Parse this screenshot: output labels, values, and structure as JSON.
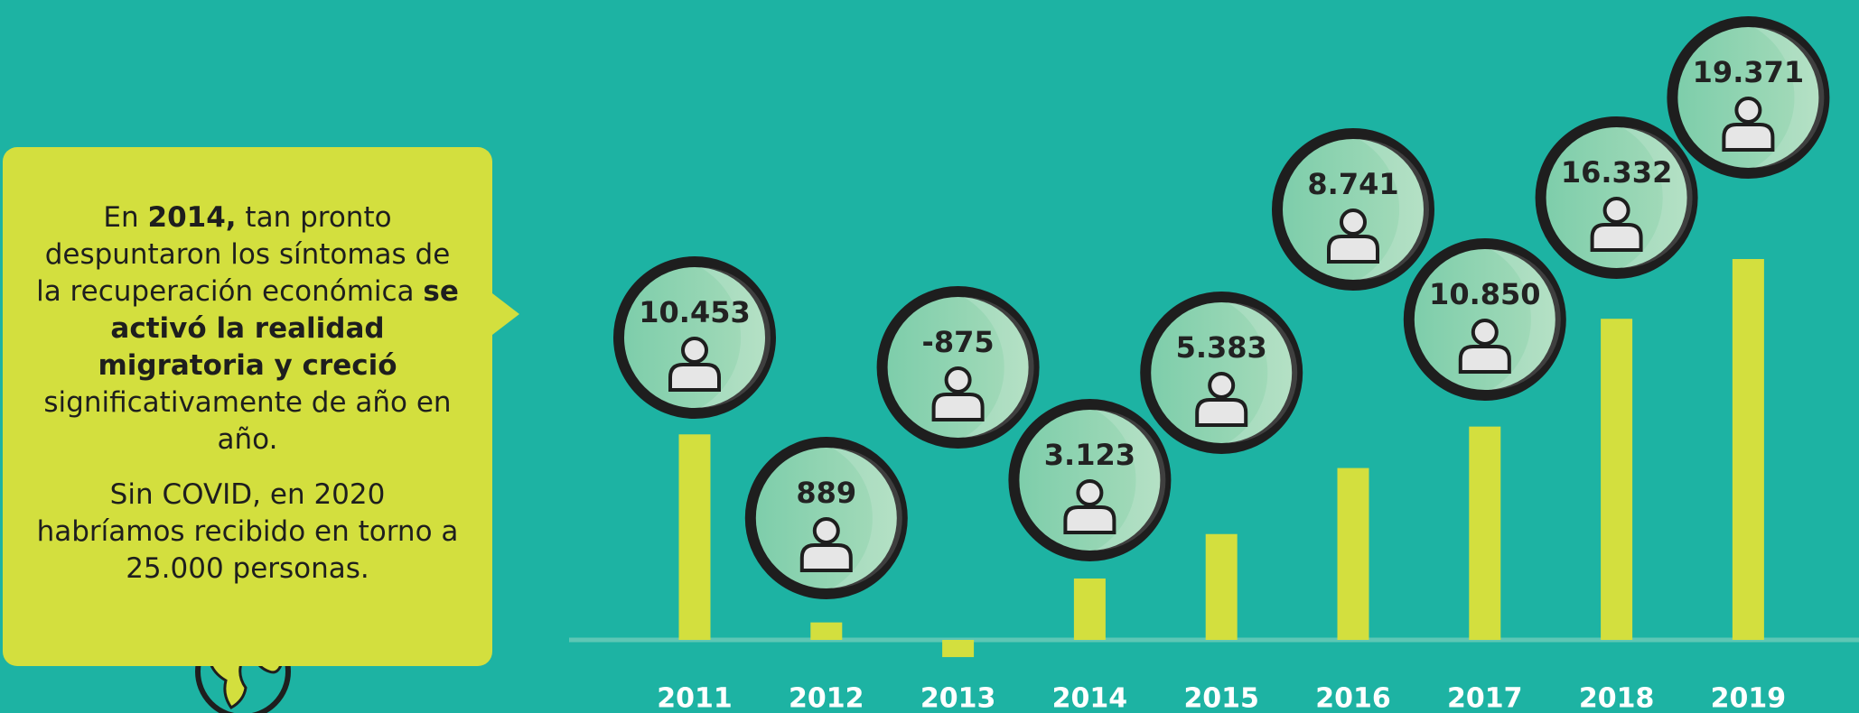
{
  "chart_data": {
    "type": "bar",
    "categories": [
      "2011",
      "2012",
      "2013",
      "2014",
      "2015",
      "2016",
      "2017",
      "2018",
      "2019"
    ],
    "values": [
      10453,
      889,
      -875,
      3123,
      5383,
      8741,
      10850,
      16332,
      19371
    ],
    "value_labels": [
      "10.453",
      "889",
      "-875",
      "3.123",
      "5.383",
      "8.741",
      "10.850",
      "16.332",
      "19.371"
    ],
    "color": "#d3df3e"
  },
  "callout": {
    "paragraph_1": [
      "En ",
      "2014,",
      " tan pronto despuntaron los síntomas de la recuperación económica ",
      "se activó la realidad migratoria y creció",
      " significativamente de año en año."
    ],
    "paragraph_2": "Sin COVID, en 2020 habríamos recibido en torno a 25.000 personas."
  }
}
